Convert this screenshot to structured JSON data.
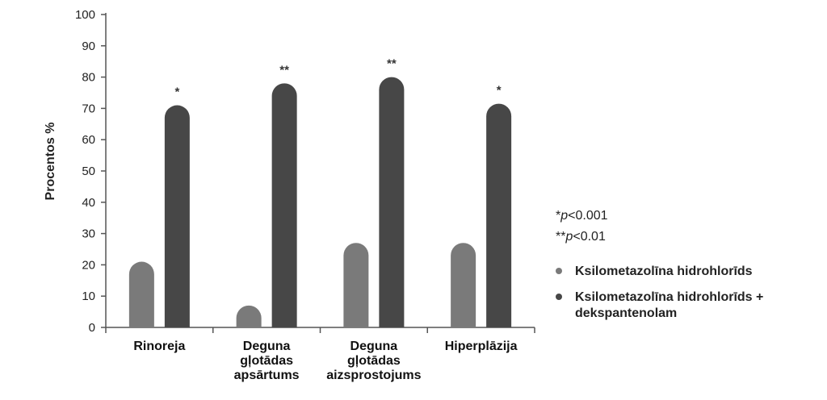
{
  "chart_data": {
    "type": "bar",
    "title": "",
    "ylabel": "Procentos %",
    "ylim": [
      0,
      100
    ],
    "yticks": [
      0,
      10,
      20,
      30,
      40,
      50,
      60,
      70,
      80,
      90,
      100
    ],
    "categories": [
      [
        "Rinoreja"
      ],
      [
        "Deguna",
        "gļotādas",
        "apsārtums"
      ],
      [
        "Deguna",
        "gļotādas",
        "aizsprostojums"
      ],
      [
        "Hiperplāzija"
      ]
    ],
    "series": [
      {
        "name": "Ksilometazolīna hidrohlorīds",
        "values": [
          21,
          7,
          27,
          27
        ],
        "color": "#7a7a7a"
      },
      {
        "name": "Ksilometazolīna hidrohlorīds + dekspantenolam",
        "name_lines": [
          "Ksilometazolīna hidrohlorīds +",
          "dekspantenolam"
        ],
        "values": [
          71,
          78,
          80,
          71.5
        ],
        "color": "#474747"
      }
    ],
    "significance": [
      "*",
      "**",
      "**",
      "*"
    ],
    "notes": [
      {
        "prefix": "*",
        "italic": "p",
        "rest": "<0.001"
      },
      {
        "prefix": "**",
        "italic": "p",
        "rest": "<0.01"
      }
    ],
    "legend_position": "right",
    "grid": false
  }
}
